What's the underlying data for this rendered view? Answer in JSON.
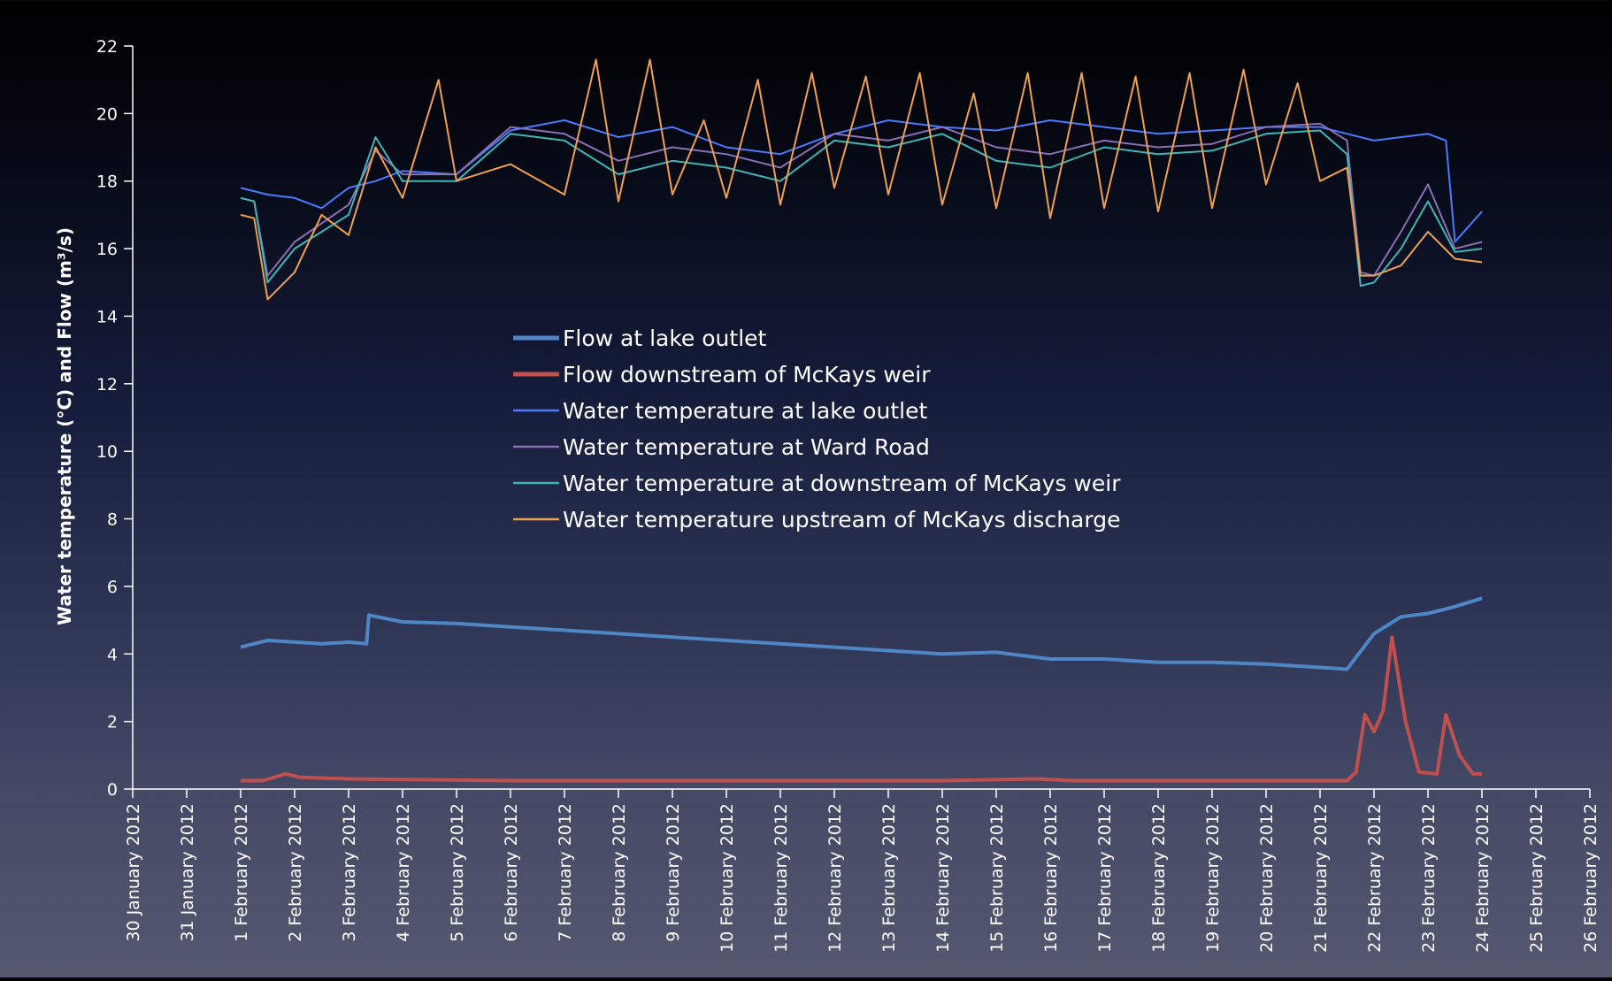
{
  "chart_data": {
    "type": "line",
    "title": "",
    "xlabel": "",
    "ylabel": "Water temperature (°C) and Flow (m³/s)",
    "ylim": [
      0,
      22
    ],
    "yticks": [
      0,
      2,
      4,
      6,
      8,
      10,
      12,
      14,
      16,
      18,
      20,
      22
    ],
    "xlim": [
      "2012-01-30",
      "2012-02-26"
    ],
    "xticks": [
      "30 January 2012",
      "31 January 2012",
      "1 February 2012",
      "2 February 2012",
      "3 February 2012",
      "4 February 2012",
      "5 February 2012",
      "6 February 2012",
      "7 February 2012",
      "8 February 2012",
      "9 February 2012",
      "10 February 2012",
      "11 February 2012",
      "12 February 2012",
      "13 February 2012",
      "14 February 2012",
      "15 February 2012",
      "16 February 2012",
      "17 February 2012",
      "18 February 2012",
      "19 February 2012",
      "20 February 2012",
      "21 February 2012",
      "22 February 2012",
      "23 February 2012",
      "24 February 2012",
      "25 February 2012",
      "26 February 2012"
    ],
    "grid": false,
    "legend_position": "center",
    "series": [
      {
        "name": "Flow at lake outlet",
        "color": "#4f86c6",
        "x": [
          "2012-02-01",
          "2012-02-01 12:00",
          "2012-02-02",
          "2012-02-02 12:00",
          "2012-02-03",
          "2012-02-03 08:00",
          "2012-02-03 09:00",
          "2012-02-04",
          "2012-02-05",
          "2012-02-06",
          "2012-02-07",
          "2012-02-08",
          "2012-02-09",
          "2012-02-10",
          "2012-02-11",
          "2012-02-12",
          "2012-02-13",
          "2012-02-14",
          "2012-02-15",
          "2012-02-16",
          "2012-02-17",
          "2012-02-18",
          "2012-02-19",
          "2012-02-20",
          "2012-02-21",
          "2012-02-21 12:00",
          "2012-02-22",
          "2012-02-22 12:00",
          "2012-02-23",
          "2012-02-23 12:00",
          "2012-02-24"
        ],
        "y": [
          4.2,
          4.4,
          4.35,
          4.3,
          4.35,
          4.3,
          5.15,
          4.95,
          4.9,
          4.8,
          4.7,
          4.6,
          4.5,
          4.4,
          4.3,
          4.2,
          4.1,
          4.0,
          4.05,
          3.85,
          3.85,
          3.75,
          3.75,
          3.7,
          3.6,
          3.55,
          4.6,
          5.1,
          5.2,
          5.4,
          5.65
        ]
      },
      {
        "name": "Flow downstream of McKays weir",
        "color": "#c0504d",
        "x": [
          "2012-02-01",
          "2012-02-01 10:00",
          "2012-02-01 20:00",
          "2012-02-02 02:00",
          "2012-02-03",
          "2012-02-06",
          "2012-02-10",
          "2012-02-14",
          "2012-02-15 18:00",
          "2012-02-16 10:00",
          "2012-02-17",
          "2012-02-20",
          "2012-02-21 12:00",
          "2012-02-21 16:00",
          "2012-02-21 20:00",
          "2012-02-22",
          "2012-02-22 04:00",
          "2012-02-22 08:00",
          "2012-02-22 14:00",
          "2012-02-22 20:00",
          "2012-02-23 04:00",
          "2012-02-23 08:00",
          "2012-02-23 14:00",
          "2012-02-23 20:00",
          "2012-02-24"
        ],
        "y": [
          0.25,
          0.25,
          0.45,
          0.35,
          0.3,
          0.25,
          0.25,
          0.25,
          0.3,
          0.25,
          0.25,
          0.25,
          0.25,
          0.5,
          2.2,
          1.7,
          2.3,
          4.5,
          2.0,
          0.5,
          0.45,
          2.2,
          1.0,
          0.45,
          0.45
        ]
      },
      {
        "name": "Water temperature at lake outlet",
        "color": "#4a7bff",
        "x": [
          "2012-02-01",
          "2012-02-01 12:00",
          "2012-02-02",
          "2012-02-02 12:00",
          "2012-02-03",
          "2012-02-03 12:00",
          "2012-02-04",
          "2012-02-05",
          "2012-02-06",
          "2012-02-07",
          "2012-02-08",
          "2012-02-09",
          "2012-02-10",
          "2012-02-11",
          "2012-02-12",
          "2012-02-13",
          "2012-02-14",
          "2012-02-15",
          "2012-02-16",
          "2012-02-17",
          "2012-02-18",
          "2012-02-19",
          "2012-02-20",
          "2012-02-21",
          "2012-02-22",
          "2012-02-23",
          "2012-02-23 08:00",
          "2012-02-23 12:00",
          "2012-02-24"
        ],
        "y": [
          17.8,
          17.6,
          17.5,
          17.2,
          17.8,
          18.0,
          18.3,
          18.2,
          19.5,
          19.8,
          19.3,
          19.6,
          19.0,
          18.8,
          19.4,
          19.8,
          19.6,
          19.5,
          19.8,
          19.6,
          19.4,
          19.5,
          19.6,
          19.6,
          19.2,
          19.4,
          19.2,
          16.2,
          17.1
        ]
      },
      {
        "name": "Water temperature at Ward Road",
        "color": "#8a6fb5",
        "x": [
          "2012-02-01",
          "2012-02-01 06:00",
          "2012-02-01 12:00",
          "2012-02-02",
          "2012-02-03",
          "2012-02-03 12:00",
          "2012-02-04",
          "2012-02-05",
          "2012-02-06",
          "2012-02-07",
          "2012-02-08",
          "2012-02-09",
          "2012-02-10",
          "2012-02-11",
          "2012-02-12",
          "2012-02-13",
          "2012-02-14",
          "2012-02-15",
          "2012-02-16",
          "2012-02-17",
          "2012-02-18",
          "2012-02-19",
          "2012-02-20",
          "2012-02-21",
          "2012-02-21 12:00",
          "2012-02-21 18:00",
          "2012-02-22",
          "2012-02-22 12:00",
          "2012-02-23",
          "2012-02-23 12:00",
          "2012-02-24"
        ],
        "y": [
          17.5,
          17.4,
          15.2,
          16.2,
          17.3,
          18.9,
          18.2,
          18.2,
          19.6,
          19.4,
          18.6,
          19.0,
          18.8,
          18.4,
          19.4,
          19.2,
          19.6,
          19.0,
          18.8,
          19.2,
          19.0,
          19.1,
          19.6,
          19.7,
          19.2,
          15.3,
          15.2,
          16.5,
          17.9,
          16.0,
          16.2
        ]
      },
      {
        "name": "Water temperature at downstream of McKays weir",
        "color": "#3fb6b6",
        "x": [
          "2012-02-01",
          "2012-02-01 06:00",
          "2012-02-01 12:00",
          "2012-02-02",
          "2012-02-03",
          "2012-02-03 12:00",
          "2012-02-04",
          "2012-02-05",
          "2012-02-06",
          "2012-02-07",
          "2012-02-08",
          "2012-02-09",
          "2012-02-10",
          "2012-02-11",
          "2012-02-12",
          "2012-02-13",
          "2012-02-14",
          "2012-02-15",
          "2012-02-16",
          "2012-02-17",
          "2012-02-18",
          "2012-02-19",
          "2012-02-20",
          "2012-02-21",
          "2012-02-21 12:00",
          "2012-02-21 18:00",
          "2012-02-22",
          "2012-02-22 12:00",
          "2012-02-23",
          "2012-02-23 12:00",
          "2012-02-24"
        ],
        "y": [
          17.5,
          17.4,
          15.0,
          16.0,
          17.0,
          19.3,
          18.0,
          18.0,
          19.4,
          19.2,
          18.2,
          18.6,
          18.4,
          18.0,
          19.2,
          19.0,
          19.4,
          18.6,
          18.4,
          19.0,
          18.8,
          18.9,
          19.4,
          19.5,
          18.8,
          14.9,
          15.0,
          16.0,
          17.4,
          15.9,
          16.0
        ]
      },
      {
        "name": "Water temperature upstream of McKays discharge",
        "color": "#f0a050",
        "x": [
          "2012-02-01",
          "2012-02-01 06:00",
          "2012-02-01 12:00",
          "2012-02-02",
          "2012-02-02 12:00",
          "2012-02-03",
          "2012-02-03 12:00",
          "2012-02-04",
          "2012-02-04 16:00",
          "2012-02-05",
          "2012-02-06",
          "2012-02-07",
          "2012-02-07 14:00",
          "2012-02-08",
          "2012-02-08 14:00",
          "2012-02-09",
          "2012-02-09 14:00",
          "2012-02-10",
          "2012-02-10 14:00",
          "2012-02-11",
          "2012-02-11 14:00",
          "2012-02-12",
          "2012-02-12 14:00",
          "2012-02-13",
          "2012-02-13 14:00",
          "2012-02-14",
          "2012-02-14 14:00",
          "2012-02-15",
          "2012-02-15 14:00",
          "2012-02-16",
          "2012-02-16 14:00",
          "2012-02-17",
          "2012-02-17 14:00",
          "2012-02-18",
          "2012-02-18 14:00",
          "2012-02-19",
          "2012-02-19 14:00",
          "2012-02-20",
          "2012-02-20 14:00",
          "2012-02-21",
          "2012-02-21 12:00",
          "2012-02-21 18:00",
          "2012-02-22",
          "2012-02-22 12:00",
          "2012-02-23",
          "2012-02-23 12:00",
          "2012-02-24"
        ],
        "y": [
          17.0,
          16.9,
          14.5,
          15.3,
          17.0,
          16.4,
          19.0,
          17.5,
          21.0,
          18.0,
          18.5,
          17.6,
          21.6,
          17.4,
          21.6,
          17.6,
          19.8,
          17.5,
          21.0,
          17.3,
          21.2,
          17.8,
          21.1,
          17.6,
          21.2,
          17.3,
          20.6,
          17.2,
          21.2,
          16.9,
          21.2,
          17.2,
          21.1,
          17.1,
          21.2,
          17.2,
          21.3,
          17.9,
          20.9,
          18.0,
          18.4,
          15.2,
          15.2,
          15.5,
          16.5,
          15.7,
          15.6
        ]
      }
    ]
  }
}
